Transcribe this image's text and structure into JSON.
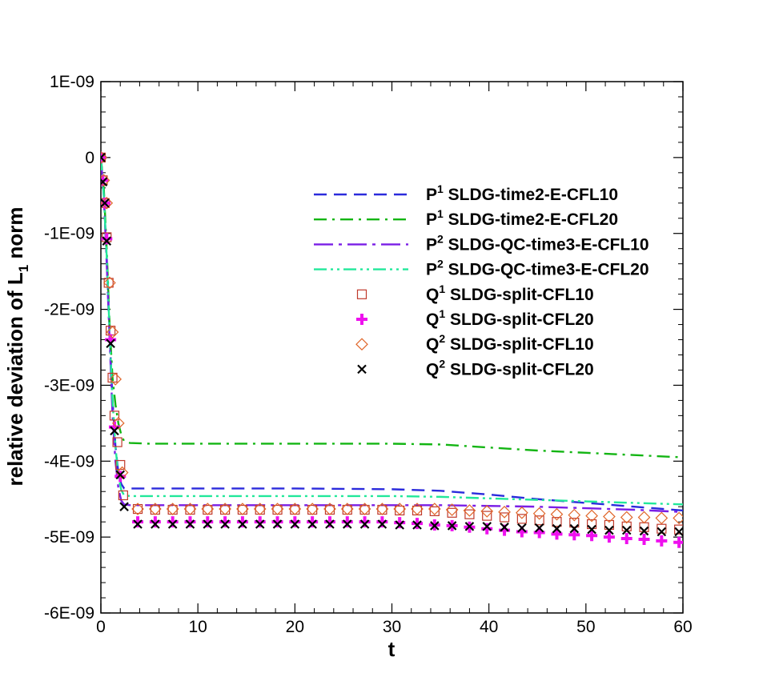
{
  "chart_data": {
    "type": "line",
    "xlabel": "t",
    "ylabel_main": "relative deviation of L",
    "ylabel_sub": "1",
    "ylabel_tail": " norm",
    "xlim": [
      0,
      60
    ],
    "ylim": [
      -6e-09,
      1e-09
    ],
    "x_ticks": [
      {
        "v": 0,
        "label": "0"
      },
      {
        "v": 10,
        "label": "10"
      },
      {
        "v": 20,
        "label": "20"
      },
      {
        "v": 30,
        "label": "30"
      },
      {
        "v": 40,
        "label": "40"
      },
      {
        "v": 50,
        "label": "50"
      },
      {
        "v": 60,
        "label": "60"
      }
    ],
    "y_ticks": [
      {
        "v": 1e-09,
        "label": "1E-09"
      },
      {
        "v": 0,
        "label": "0"
      },
      {
        "v": -1e-09,
        "label": "-1E-09"
      },
      {
        "v": -2e-09,
        "label": "-2E-09"
      },
      {
        "v": -3e-09,
        "label": "-3E-09"
      },
      {
        "v": -4e-09,
        "label": "-4E-09"
      },
      {
        "v": -5e-09,
        "label": "-5E-09"
      },
      {
        "v": -6e-09,
        "label": "-6E-09"
      }
    ],
    "grid": false,
    "legend_position": "top-right",
    "series": [
      {
        "name_prefix": "P",
        "name_sup": "1",
        "name_rest": " SLDG-time2-E-CFL10",
        "style": "dashed",
        "color": "#2b2bdc",
        "x": [
          0,
          0.3,
          0.6,
          0.9,
          1.2,
          1.5,
          1.8,
          2.1,
          2.4,
          3,
          5,
          10,
          20,
          30,
          35,
          40,
          45,
          50,
          55,
          60
        ],
        "y": [
          0,
          -5e-10,
          -1.3e-09,
          -2.3e-09,
          -3.2e-09,
          -3.8e-09,
          -4.15e-09,
          -4.3e-09,
          -4.36e-09,
          -4.36e-09,
          -4.36e-09,
          -4.36e-09,
          -4.36e-09,
          -4.37e-09,
          -4.39e-09,
          -4.44e-09,
          -4.5e-09,
          -4.55e-09,
          -4.6e-09,
          -4.65e-09
        ]
      },
      {
        "name_prefix": "P",
        "name_sup": "1",
        "name_rest": " SLDG-time2-E-CFL20",
        "style": "dashdot",
        "color": "#13b513",
        "x": [
          0,
          0.3,
          0.6,
          0.9,
          1.2,
          1.5,
          1.8,
          2.1,
          2.4,
          3,
          5,
          10,
          20,
          30,
          35,
          40,
          45,
          50,
          55,
          60
        ],
        "y": [
          0,
          -4e-10,
          -1.2e-09,
          -2.2e-09,
          -2.9e-09,
          -3.25e-09,
          -3.5e-09,
          -3.65e-09,
          -3.74e-09,
          -3.76e-09,
          -3.77e-09,
          -3.77e-09,
          -3.77e-09,
          -3.77e-09,
          -3.78e-09,
          -3.82e-09,
          -3.86e-09,
          -3.89e-09,
          -3.92e-09,
          -3.95e-09
        ]
      },
      {
        "name_prefix": "P",
        "name_sup": "2",
        "name_rest": " SLDG-QC-time3-E-CFL10",
        "style": "longdashdot",
        "color": "#7a1ee6",
        "x": [
          0,
          0.3,
          0.6,
          0.9,
          1.2,
          1.5,
          1.8,
          2.1,
          2.4,
          3,
          5,
          10,
          20,
          30,
          35,
          40,
          45,
          50,
          55,
          60
        ],
        "y": [
          0,
          -5e-10,
          -1.4e-09,
          -2.4e-09,
          -3.4e-09,
          -4e-09,
          -4.35e-09,
          -4.52e-09,
          -4.57e-09,
          -4.58e-09,
          -4.58e-09,
          -4.58e-09,
          -4.58e-09,
          -4.58e-09,
          -4.58e-09,
          -4.59e-09,
          -4.6e-09,
          -4.62e-09,
          -4.64e-09,
          -4.67e-09
        ]
      },
      {
        "name_prefix": "P",
        "name_sup": "2",
        "name_rest": " SLDG-QC-time3-E-CFL20",
        "style": "dashdotdot",
        "color": "#22e89a",
        "x": [
          0,
          0.3,
          0.6,
          0.9,
          1.2,
          1.5,
          1.8,
          2.1,
          2.4,
          3,
          5,
          10,
          20,
          30,
          35,
          40,
          45,
          50,
          55,
          60
        ],
        "y": [
          0,
          -5e-10,
          -1.3e-09,
          -2.3e-09,
          -3.2e-09,
          -3.8e-09,
          -4.2e-09,
          -4.38e-09,
          -4.45e-09,
          -4.46e-09,
          -4.46e-09,
          -4.46e-09,
          -4.46e-09,
          -4.46e-09,
          -4.47e-09,
          -4.49e-09,
          -4.51e-09,
          -4.53e-09,
          -4.55e-09,
          -4.57e-09
        ]
      },
      {
        "name_prefix": "Q",
        "name_sup": "1",
        "name_rest": " SLDG-split-CFL10",
        "marker": "square",
        "color": "#c0392b",
        "x": [
          0,
          0.2,
          0.4,
          0.6,
          0.8,
          1.0,
          1.2,
          1.4,
          1.7,
          2.0,
          2.3,
          3.8,
          5.6,
          7.4,
          9.2,
          11,
          12.8,
          14.6,
          16.4,
          18.2,
          20,
          21.8,
          23.6,
          25.4,
          27.2,
          29,
          30.8,
          32.6,
          34.4,
          36.2,
          38,
          39.8,
          41.6,
          43.4,
          45.2,
          47,
          48.8,
          50.6,
          52.4,
          54.2,
          56,
          57.8,
          59.6
        ],
        "y": [
          0,
          -3e-10,
          -6e-10,
          -1.05e-09,
          -1.65e-09,
          -2.28e-09,
          -2.9e-09,
          -3.4e-09,
          -3.75e-09,
          -4.05e-09,
          -4.45e-09,
          -4.63e-09,
          -4.64e-09,
          -4.64e-09,
          -4.64e-09,
          -4.64e-09,
          -4.64e-09,
          -4.64e-09,
          -4.64e-09,
          -4.64e-09,
          -4.64e-09,
          -4.64e-09,
          -4.64e-09,
          -4.64e-09,
          -4.64e-09,
          -4.64e-09,
          -4.65e-09,
          -4.65e-09,
          -4.66e-09,
          -4.68e-09,
          -4.7e-09,
          -4.72e-09,
          -4.74e-09,
          -4.76e-09,
          -4.78e-09,
          -4.8e-09,
          -4.81e-09,
          -4.83e-09,
          -4.84e-09,
          -4.86e-09,
          -4.87e-09,
          -4.89e-09,
          -4.9e-09
        ]
      },
      {
        "name_prefix": "Q",
        "name_sup": "1",
        "name_rest": " SLDG-split-CFL20",
        "marker": "plus",
        "color": "#ee11ee",
        "x": [
          0,
          0.2,
          0.4,
          0.6,
          1.0,
          1.4,
          2.0,
          3.8,
          5.6,
          7.4,
          9.2,
          11,
          12.8,
          14.6,
          16.4,
          18.2,
          20,
          21.8,
          23.6,
          25.4,
          27.2,
          29,
          30.8,
          32.6,
          34.4,
          36.2,
          38,
          39.8,
          41.6,
          43.4,
          45.2,
          47,
          48.8,
          50.6,
          52.4,
          54.2,
          56,
          57.8,
          59.6
        ],
        "y": [
          0,
          -3e-10,
          -6e-10,
          -1.07e-09,
          -2.4e-09,
          -3.55e-09,
          -4.2e-09,
          -4.8e-09,
          -4.8e-09,
          -4.8e-09,
          -4.8e-09,
          -4.8e-09,
          -4.8e-09,
          -4.8e-09,
          -4.8e-09,
          -4.8e-09,
          -4.8e-09,
          -4.8e-09,
          -4.8e-09,
          -4.8e-09,
          -4.8e-09,
          -4.8e-09,
          -4.81e-09,
          -4.82e-09,
          -4.84e-09,
          -4.85e-09,
          -4.87e-09,
          -4.89e-09,
          -4.91e-09,
          -4.93e-09,
          -4.94e-09,
          -4.96e-09,
          -4.97e-09,
          -4.98e-09,
          -5e-09,
          -5.02e-09,
          -5.03e-09,
          -5.05e-09,
          -5.07e-09
        ]
      },
      {
        "name_prefix": "Q",
        "name_sup": "2",
        "name_rest": " SLDG-split-CFL10",
        "marker": "diamond",
        "color": "#e0662a",
        "x": [
          0,
          0.3,
          0.6,
          0.9,
          1.2,
          1.5,
          1.8,
          2.2,
          3.8,
          5.6,
          7.4,
          9.2,
          11,
          12.8,
          14.6,
          16.4,
          18.2,
          20,
          21.8,
          23.6,
          25.4,
          27.2,
          29,
          30.8,
          32.6,
          34.4,
          36.2,
          38,
          39.8,
          41.6,
          43.4,
          45.2,
          47,
          48.8,
          50.6,
          52.4,
          54.2,
          56,
          57.8,
          59.6
        ],
        "y": [
          0,
          -3e-10,
          -6e-10,
          -1.65e-09,
          -2.3e-09,
          -2.92e-09,
          -3.5e-09,
          -4.15e-09,
          -4.63e-09,
          -4.63e-09,
          -4.63e-09,
          -4.63e-09,
          -4.63e-09,
          -4.63e-09,
          -4.63e-09,
          -4.63e-09,
          -4.63e-09,
          -4.63e-09,
          -4.63e-09,
          -4.63e-09,
          -4.63e-09,
          -4.63e-09,
          -4.63e-09,
          -4.63e-09,
          -4.63e-09,
          -4.63e-09,
          -4.64e-09,
          -4.65e-09,
          -4.66e-09,
          -4.67e-09,
          -4.68e-09,
          -4.69e-09,
          -4.7e-09,
          -4.71e-09,
          -4.72e-09,
          -4.73e-09,
          -4.74e-09,
          -4.74e-09,
          -4.75e-09,
          -4.75e-09
        ]
      },
      {
        "name_prefix": "Q",
        "name_sup": "2",
        "name_rest": " SLDG-split-CFL20",
        "marker": "x",
        "color": "#000000",
        "x": [
          0,
          0.2,
          0.4,
          0.6,
          1.0,
          1.4,
          2.0,
          2.4,
          3.8,
          5.6,
          7.4,
          9.2,
          11,
          12.8,
          14.6,
          16.4,
          18.2,
          20,
          21.8,
          23.6,
          25.4,
          27.2,
          29,
          30.8,
          32.6,
          34.4,
          36.2,
          38,
          39.8,
          41.6,
          43.4,
          45.2,
          47,
          48.8,
          50.6,
          52.4,
          54.2,
          56,
          57.8,
          59.6
        ],
        "y": [
          0,
          -3.2e-10,
          -6e-10,
          -1.1e-09,
          -2.45e-09,
          -3.6e-09,
          -4.18e-09,
          -4.6e-09,
          -4.83e-09,
          -4.83e-09,
          -4.83e-09,
          -4.83e-09,
          -4.83e-09,
          -4.83e-09,
          -4.83e-09,
          -4.83e-09,
          -4.83e-09,
          -4.83e-09,
          -4.83e-09,
          -4.83e-09,
          -4.83e-09,
          -4.83e-09,
          -4.83e-09,
          -4.84e-09,
          -4.84e-09,
          -4.85e-09,
          -4.85e-09,
          -4.86e-09,
          -4.86e-09,
          -4.87e-09,
          -4.88e-09,
          -4.88e-09,
          -4.89e-09,
          -4.89e-09,
          -4.9e-09,
          -4.91e-09,
          -4.91e-09,
          -4.92e-09,
          -4.93e-09,
          -4.93e-09
        ]
      }
    ]
  }
}
